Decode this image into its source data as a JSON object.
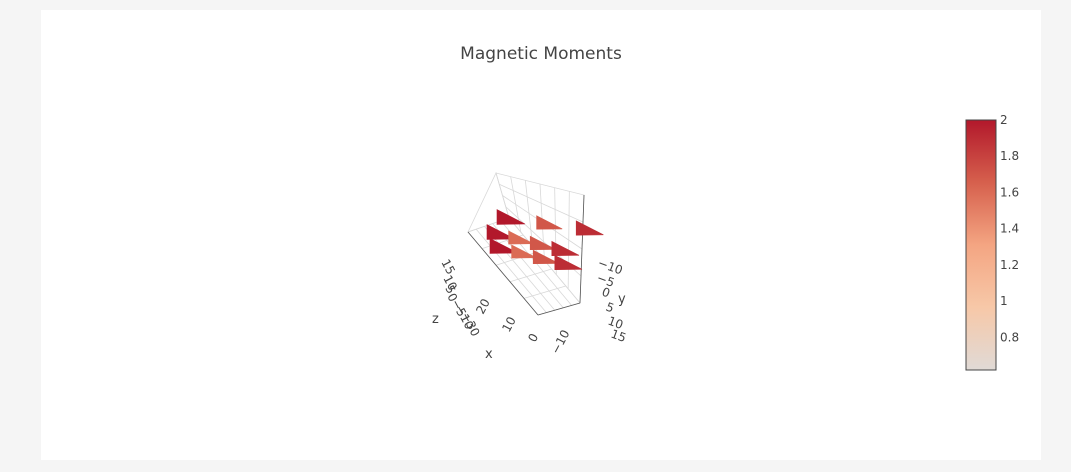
{
  "chart_data": {
    "type": "cone",
    "title": "Magnetic Moments",
    "scene": {
      "axes": [
        {
          "name": "x",
          "label": "x",
          "tick_labels": [
            "20",
            "10",
            "0",
            "−10"
          ]
        },
        {
          "name": "y",
          "label": "y",
          "tick_labels": [
            "−10",
            "−5",
            "0",
            "5",
            "10",
            "15"
          ]
        },
        {
          "name": "z",
          "label": "z",
          "tick_labels": [
            "15",
            "10",
            "5",
            "0",
            "−5",
            "−10",
            "−30"
          ]
        }
      ],
      "grid": true
    },
    "colorbar": {
      "colorscale": "RdBu-reversed",
      "range": [
        0.62,
        2
      ],
      "tick_labels": [
        "2",
        "1.8",
        "1.6",
        "1.4",
        "1.2",
        "1",
        "0.8"
      ],
      "tick_values": [
        2,
        1.8,
        1.6,
        1.4,
        1.2,
        1,
        0.8
      ],
      "colors": [
        "#b2182b",
        "#d6604d",
        "#f4a582",
        "#f7c8a8",
        "#e0dad6"
      ]
    },
    "cones": {
      "rows": [
        {
          "magnitudes": [
            2,
            1.7,
            1.9
          ]
        },
        {
          "magnitudes": [
            2,
            1.6,
            1.7,
            1.9
          ]
        },
        {
          "magnitudes": [
            2,
            1.6,
            1.7,
            1.9
          ]
        }
      ]
    }
  }
}
